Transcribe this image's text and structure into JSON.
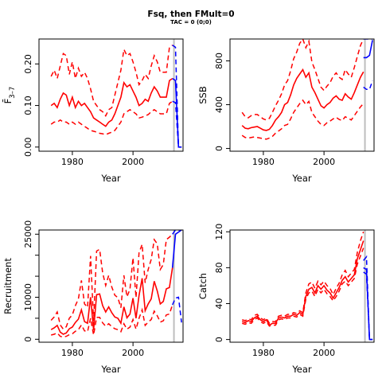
{
  "title": "Fsq, then FMult=0",
  "subtitle": "TAC = 0 (0;0)",
  "colors": {
    "historical": "#ff0000",
    "projection": "#0000ff",
    "divider": "#bebebe",
    "axis": "#000000"
  },
  "chart_data": [
    {
      "type": "line",
      "id": "fbar",
      "xlabel": "Year",
      "ylabel": "F̄3–7",
      "ylabel_main": "F̄",
      "ylabel_sub": "3–7",
      "xlim": [
        1969,
        2016.5
      ],
      "ylim": [
        -0.01,
        0.26
      ],
      "xticks": [
        1980,
        2000
      ],
      "yticks": [
        0.0,
        0.1,
        0.2
      ],
      "ytick_labels": [
        "0.00",
        "0.10",
        "0.20"
      ],
      "terminal_year": 2013.5,
      "historical": {
        "x": [
          1973,
          1974,
          1975,
          1976,
          1977,
          1978,
          1979,
          1980,
          1981,
          1982,
          1983,
          1984,
          1985,
          1986,
          1987,
          1988,
          1989,
          1990,
          1991,
          1992,
          1993,
          1994,
          1995,
          1996,
          1997,
          1998,
          1999,
          2000,
          2001,
          2002,
          2003,
          2004,
          2005,
          2006,
          2007,
          2008,
          2009,
          2010,
          2011,
          2012,
          2013
        ],
        "mid": [
          0.1,
          0.105,
          0.095,
          0.115,
          0.13,
          0.125,
          0.1,
          0.12,
          0.095,
          0.11,
          0.1,
          0.105,
          0.095,
          0.085,
          0.07,
          0.065,
          0.06,
          0.055,
          0.05,
          0.06,
          0.065,
          0.08,
          0.1,
          0.12,
          0.155,
          0.145,
          0.15,
          0.135,
          0.12,
          0.1,
          0.105,
          0.115,
          0.11,
          0.13,
          0.145,
          0.135,
          0.12,
          0.12,
          0.12,
          0.16,
          0.165
        ],
        "lo": [
          0.055,
          0.06,
          0.06,
          0.065,
          0.06,
          0.06,
          0.055,
          0.06,
          0.055,
          0.06,
          0.055,
          0.05,
          0.045,
          0.04,
          0.038,
          0.036,
          0.033,
          0.032,
          0.03,
          0.033,
          0.036,
          0.04,
          0.05,
          0.06,
          0.08,
          0.085,
          0.09,
          0.085,
          0.08,
          0.07,
          0.072,
          0.075,
          0.078,
          0.085,
          0.09,
          0.085,
          0.08,
          0.08,
          0.08,
          0.105,
          0.11
        ],
        "hi": [
          0.17,
          0.185,
          0.165,
          0.195,
          0.225,
          0.22,
          0.175,
          0.205,
          0.165,
          0.19,
          0.17,
          0.18,
          0.165,
          0.14,
          0.11,
          0.1,
          0.09,
          0.085,
          0.075,
          0.09,
          0.095,
          0.125,
          0.155,
          0.185,
          0.235,
          0.22,
          0.225,
          0.205,
          0.18,
          0.15,
          0.16,
          0.175,
          0.165,
          0.195,
          0.22,
          0.205,
          0.18,
          0.18,
          0.18,
          0.24,
          0.245
        ]
      },
      "projection": {
        "x": [
          2013,
          2014,
          2015,
          2016
        ],
        "mid": [
          0.165,
          0.16,
          0.0,
          0.0
        ],
        "lo": [
          0.11,
          0.107,
          0.0,
          0.0
        ],
        "hi": [
          0.245,
          0.24,
          0.0,
          0.0
        ]
      }
    },
    {
      "type": "line",
      "id": "ssb",
      "xlabel": "Year",
      "ylabel": "SSB",
      "xlim": [
        1969,
        2016.5
      ],
      "ylim": [
        -25,
        1000
      ],
      "xticks": [
        1980,
        2000
      ],
      "yticks": [
        0,
        400,
        800
      ],
      "ytick_labels": [
        "0",
        "400",
        "800"
      ],
      "terminal_year": 2013.5,
      "historical": {
        "x": [
          1973,
          1974,
          1975,
          1976,
          1977,
          1978,
          1979,
          1980,
          1981,
          1982,
          1983,
          1984,
          1985,
          1986,
          1987,
          1988,
          1989,
          1990,
          1991,
          1992,
          1993,
          1994,
          1995,
          1996,
          1997,
          1998,
          1999,
          2000,
          2001,
          2002,
          2003,
          2004,
          2005,
          2006,
          2007,
          2008,
          2009,
          2010,
          2011,
          2012,
          2013
        ],
        "mid": [
          210,
          185,
          180,
          190,
          195,
          200,
          185,
          170,
          165,
          175,
          210,
          260,
          290,
          330,
          400,
          420,
          490,
          580,
          640,
          680,
          720,
          650,
          690,
          560,
          510,
          450,
          390,
          370,
          400,
          420,
          460,
          480,
          450,
          440,
          500,
          470,
          450,
          510,
          580,
          650,
          700
        ],
        "lo": [
          120,
          100,
          95,
          100,
          105,
          100,
          95,
          90,
          85,
          95,
          110,
          140,
          160,
          180,
          210,
          220,
          270,
          330,
          370,
          410,
          440,
          400,
          430,
          330,
          290,
          250,
          220,
          210,
          235,
          250,
          270,
          285,
          265,
          255,
          290,
          275,
          260,
          300,
          340,
          380,
          410
        ],
        "hi": [
          330,
          290,
          280,
          300,
          310,
          310,
          290,
          270,
          260,
          275,
          330,
          390,
          440,
          500,
          580,
          620,
          710,
          820,
          880,
          960,
          1020,
          920,
          980,
          790,
          720,
          640,
          560,
          530,
          570,
          600,
          660,
          690,
          650,
          630,
          720,
          680,
          650,
          740,
          840,
          940,
          1000
        ]
      },
      "projection": {
        "x": [
          2013,
          2014,
          2015,
          2016
        ],
        "mid": [
          830,
          830,
          850,
          990
        ],
        "lo": [
          560,
          540,
          540,
          620
        ],
        "hi": [
          1100,
          1150,
          1200,
          1300
        ]
      }
    },
    {
      "type": "line",
      "id": "recruitment",
      "xlabel": "Year",
      "ylabel": "Recruitment",
      "xlim": [
        1969,
        2016.5
      ],
      "ylim": [
        -700,
        26000
      ],
      "xticks": [
        1980,
        2000
      ],
      "yticks": [
        0,
        5000,
        10000,
        15000,
        20000,
        25000
      ],
      "ytick_labels": [
        "0",
        "",
        "10000",
        "",
        "",
        "25000"
      ],
      "terminal_year": 2013.5,
      "historical": {
        "x": [
          1973,
          1974,
          1975,
          1976,
          1977,
          1978,
          1979,
          1980,
          1981,
          1982,
          1983,
          1984,
          1985,
          1986,
          1987,
          1988,
          1989,
          1990,
          1991,
          1992,
          1993,
          1994,
          1995,
          1996,
          1997,
          1998,
          1999,
          2000,
          2001,
          2002,
          2003,
          2004,
          2005,
          2006,
          2007,
          2008,
          2009,
          2010,
          2011,
          2012,
          2013
        ],
        "mid": [
          2300,
          2700,
          3300,
          1700,
          1200,
          1500,
          2500,
          2900,
          4000,
          4800,
          7000,
          4200,
          3800,
          10000,
          2200,
          10600,
          10800,
          8000,
          6500,
          7700,
          6300,
          5300,
          5000,
          3800,
          7700,
          5100,
          6000,
          9800,
          5000,
          10400,
          14500,
          6800,
          8400,
          9600,
          13800,
          11500,
          8400,
          9000,
          12000,
          12300,
          17000
        ],
        "lo": [
          1000,
          1200,
          1500,
          700,
          500,
          700,
          1100,
          1300,
          1900,
          2300,
          3400,
          2000,
          1800,
          5000,
          1000,
          5200,
          5200,
          3900,
          3100,
          3700,
          3000,
          2500,
          2300,
          1800,
          3700,
          2400,
          2900,
          4700,
          2400,
          5000,
          7000,
          3300,
          4100,
          4700,
          6700,
          5600,
          4100,
          4400,
          5800,
          6000,
          8200
        ],
        "hi": [
          4500,
          5300,
          6500,
          3400,
          2400,
          3000,
          5000,
          5800,
          8000,
          9600,
          14000,
          8400,
          7600,
          19800,
          4400,
          21000,
          21400,
          15800,
          12800,
          15200,
          12400,
          10500,
          9900,
          7500,
          15200,
          10100,
          11900,
          19400,
          9900,
          20600,
          22600,
          13400,
          16600,
          19000,
          23700,
          22700,
          16600,
          17800,
          23700,
          24300,
          25000
        ]
      },
      "projection": {
        "x": [
          2013,
          2014,
          2015,
          2016
        ],
        "mid": [
          17000,
          25000,
          25500,
          26000
        ],
        "lo": [
          8200,
          9800,
          10000,
          4000
        ],
        "hi": [
          25000,
          26500,
          27000,
          28000
        ]
      }
    },
    {
      "type": "line",
      "id": "catch",
      "xlabel": "Year",
      "ylabel": "Catch",
      "xlim": [
        1969,
        2016.5
      ],
      "ylim": [
        -3,
        122
      ],
      "xticks": [
        1980,
        2000
      ],
      "yticks": [
        0,
        40,
        80,
        120
      ],
      "ytick_labels": [
        "0",
        "40",
        "80",
        "120"
      ],
      "terminal_year": 2013.5,
      "historical": {
        "x": [
          1973,
          1974,
          1975,
          1976,
          1977,
          1978,
          1979,
          1980,
          1981,
          1982,
          1983,
          1984,
          1985,
          1986,
          1987,
          1988,
          1989,
          1990,
          1991,
          1992,
          1993,
          1994,
          1995,
          1996,
          1997,
          1998,
          1999,
          2000,
          2001,
          2002,
          2003,
          2004,
          2005,
          2006,
          2007,
          2008,
          2009,
          2010,
          2011,
          2012,
          2013
        ],
        "mid": [
          20,
          19,
          21,
          20,
          24,
          26,
          22,
          20,
          22,
          16,
          18,
          18,
          24,
          25,
          24,
          26,
          26,
          28,
          27,
          30,
          28,
          48,
          56,
          58,
          52,
          60,
          56,
          60,
          55,
          52,
          46,
          52,
          58,
          66,
          70,
          64,
          68,
          72,
          90,
          100,
          110
        ],
        "lo": [
          18,
          17,
          19,
          18,
          22,
          24,
          20,
          18,
          20,
          15,
          16,
          16,
          22,
          23,
          22,
          24,
          24,
          26,
          25,
          28,
          26,
          45,
          52,
          54,
          48,
          56,
          52,
          56,
          51,
          48,
          43,
          48,
          54,
          62,
          65,
          60,
          64,
          68,
          84,
          93,
          102
        ],
        "hi": [
          22,
          21,
          23,
          22,
          27,
          28,
          24,
          22,
          24,
          18,
          20,
          20,
          26,
          27,
          26,
          28,
          28,
          30,
          29,
          32,
          30,
          52,
          62,
          64,
          57,
          65,
          61,
          65,
          60,
          57,
          50,
          57,
          63,
          72,
          77,
          70,
          74,
          78,
          97,
          110,
          120
        ]
      },
      "projection": {
        "x": [
          2013,
          2014,
          2015,
          2016
        ],
        "mid": [
          80,
          78,
          0,
          0
        ],
        "lo": [
          75,
          73,
          0,
          0
        ],
        "hi": [
          88,
          92,
          0,
          0
        ]
      }
    }
  ]
}
